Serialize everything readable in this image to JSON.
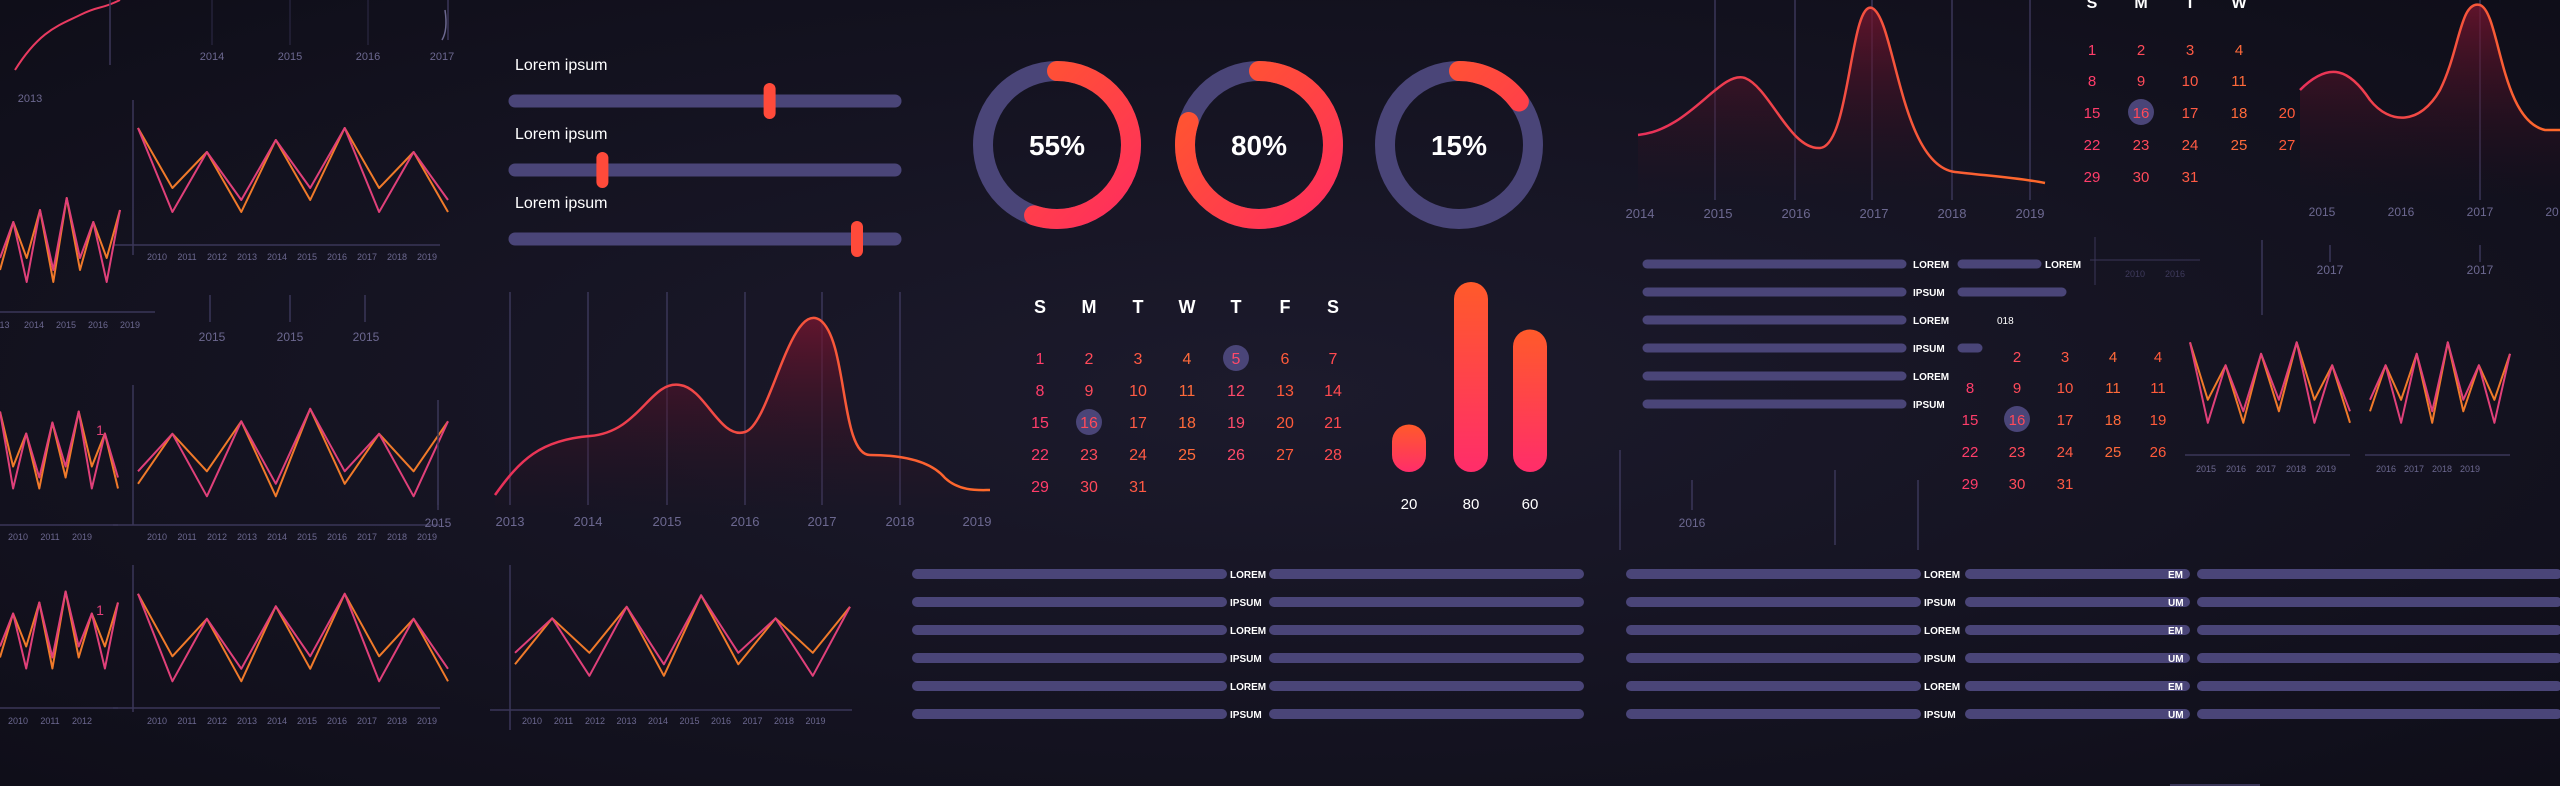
{
  "colors": {
    "background": "#12111d",
    "track": "#4a4578",
    "hot_start": "#ff2d5e",
    "hot_end": "#ff5a2a",
    "orange_line": "#f07a2a",
    "pink_line": "#e0407a",
    "axis_text": "#6c6890",
    "white": "#ffffff"
  },
  "sliders": {
    "items": [
      {
        "label": "Lorem ipsum",
        "value": 0.67
      },
      {
        "label": "Lorem ipsum",
        "value": 0.23
      },
      {
        "label": "Lorem ipsum",
        "value": 0.9
      }
    ]
  },
  "donuts": {
    "items": [
      {
        "label": "55%",
        "value": 0.55
      },
      {
        "label": "80%",
        "value": 0.8
      },
      {
        "label": "15%",
        "value": 0.15
      }
    ]
  },
  "calendar_main": {
    "weekdays": [
      "S",
      "M",
      "T",
      "W",
      "T",
      "F",
      "S"
    ],
    "weeks": [
      [
        "1",
        "2",
        "3",
        "4",
        "5",
        "6",
        "7"
      ],
      [
        "8",
        "9",
        "10",
        "11",
        "12",
        "13",
        "14"
      ],
      [
        "15",
        "16",
        "17",
        "18",
        "19",
        "20",
        "21"
      ],
      [
        "22",
        "23",
        "24",
        "25",
        "26",
        "27",
        "28"
      ],
      [
        "29",
        "30",
        "31",
        "",
        "",
        "",
        ""
      ]
    ],
    "circled_days": [
      "5",
      "16"
    ]
  },
  "calendar_right_top": {
    "weekdays": [
      "S",
      "M",
      "T",
      "W"
    ],
    "weeks": [
      [
        "1",
        "2",
        "3",
        "4"
      ],
      [
        "8",
        "9",
        "10",
        "11"
      ],
      [
        "15",
        "16",
        "17",
        "18",
        "20"
      ],
      [
        "22",
        "23",
        "24",
        "25",
        "27"
      ],
      [
        "29",
        "30",
        "31"
      ]
    ],
    "circled_day": "16"
  },
  "calendar_right_mid": {
    "weeks": [
      [
        "",
        "2",
        "3",
        "4",
        "4"
      ],
      [
        "8",
        "9",
        "10",
        "11",
        "11"
      ],
      [
        "15",
        "16",
        "17",
        "18",
        "19"
      ],
      [
        "22",
        "23",
        "24",
        "25",
        "26"
      ],
      [
        "29",
        "30",
        "31"
      ]
    ],
    "circled_day": "16"
  },
  "bar_chart": {
    "labels": [
      "20",
      "80",
      "60"
    ],
    "values": [
      20,
      80,
      60
    ]
  },
  "area_chart_main": {
    "x_ticks": [
      "2013",
      "2014",
      "2015",
      "2016",
      "2017",
      "2018",
      "2019"
    ]
  },
  "area_chart_right": {
    "x_ticks": [
      "2014",
      "2015",
      "2016",
      "2017",
      "2018",
      "2019"
    ]
  },
  "area_chart_far_right": {
    "x_ticks": [
      "2015",
      "2016",
      "2017",
      "20"
    ]
  },
  "top_left_axis": {
    "x_ticks": [
      "2014",
      "2015",
      "2016",
      "2017"
    ],
    "corner_label": "2013"
  },
  "years_small": [
    "2010",
    "2011",
    "2012",
    "2013",
    "2014",
    "2015",
    "2016",
    "2017",
    "2018",
    "2019"
  ],
  "years_partial_left": [
    "2010",
    "2011",
    "2019"
  ],
  "years_tiny_left": [
    "013",
    "2014",
    "2015",
    "2016",
    "2019"
  ],
  "mid_left_years": [
    "2015",
    "2015",
    "2015"
  ],
  "stray_labels": {
    "one_a": "1",
    "one_b": "1",
    "year_2015": "2015",
    "year_2016": "2016",
    "year_2017_a": "2017",
    "year_2017_b": "2017",
    "faded_2010": "2010",
    "faded_2016": "2016",
    "partial_018": "018"
  },
  "progress_mid_right": {
    "labels": [
      "LOREM",
      "IPSUM",
      "LOREM",
      "IPSUM",
      "LOREM",
      "IPSUM"
    ],
    "second_label": "LOREM"
  },
  "progress_bottom_center": {
    "labels": [
      "LOREM",
      "IPSUM",
      "LOREM",
      "IPSUM",
      "LOREM",
      "IPSUM"
    ]
  },
  "progress_bottom_right": {
    "labels": [
      "LOREM",
      "IPSUM",
      "LOREM",
      "IPSUM",
      "LOREM",
      "IPSUM"
    ],
    "labels_clipped": [
      "EM",
      "UM",
      "EM",
      "UM",
      "EM",
      "UM"
    ]
  }
}
